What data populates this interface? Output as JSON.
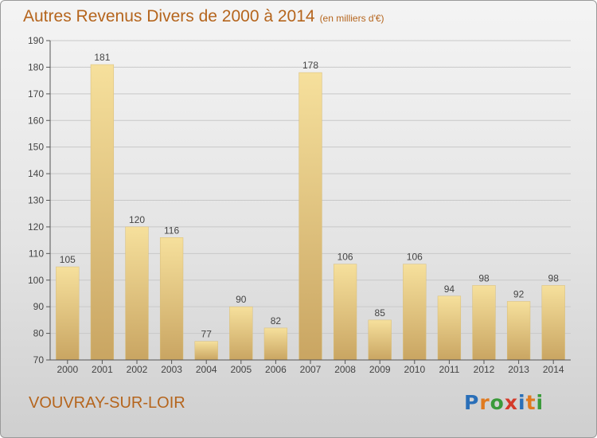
{
  "page": {
    "title": "Autres Revenus Divers de 2000 à 2014",
    "unit": "(en milliers d'€)",
    "town": "VOUVRAY-SUR-LOIR"
  },
  "logo": {
    "letters": [
      "P",
      "r",
      "o",
      "x",
      "i",
      "t",
      "i"
    ],
    "colors": [
      "#2a6fb8",
      "#e07a1f",
      "#3a9a3a",
      "#d43a2a",
      "#2a6fb8",
      "#e07a1f",
      "#3a9a3a"
    ]
  },
  "chart_data": {
    "type": "bar",
    "title": "Autres Revenus Divers de 2000 à 2014",
    "xlabel": "",
    "ylabel": "",
    "categories": [
      "2000",
      "2001",
      "2002",
      "2003",
      "2004",
      "2005",
      "2006",
      "2007",
      "2008",
      "2009",
      "2010",
      "2011",
      "2012",
      "2013",
      "2014"
    ],
    "values": [
      105,
      181,
      120,
      116,
      77,
      90,
      82,
      178,
      106,
      85,
      106,
      94,
      98,
      92,
      98
    ],
    "ylim": [
      70,
      190
    ],
    "yticks": [
      70,
      80,
      90,
      100,
      110,
      120,
      130,
      140,
      150,
      160,
      170,
      180,
      190
    ],
    "grid": true,
    "bar_color": "#e8cc84"
  }
}
